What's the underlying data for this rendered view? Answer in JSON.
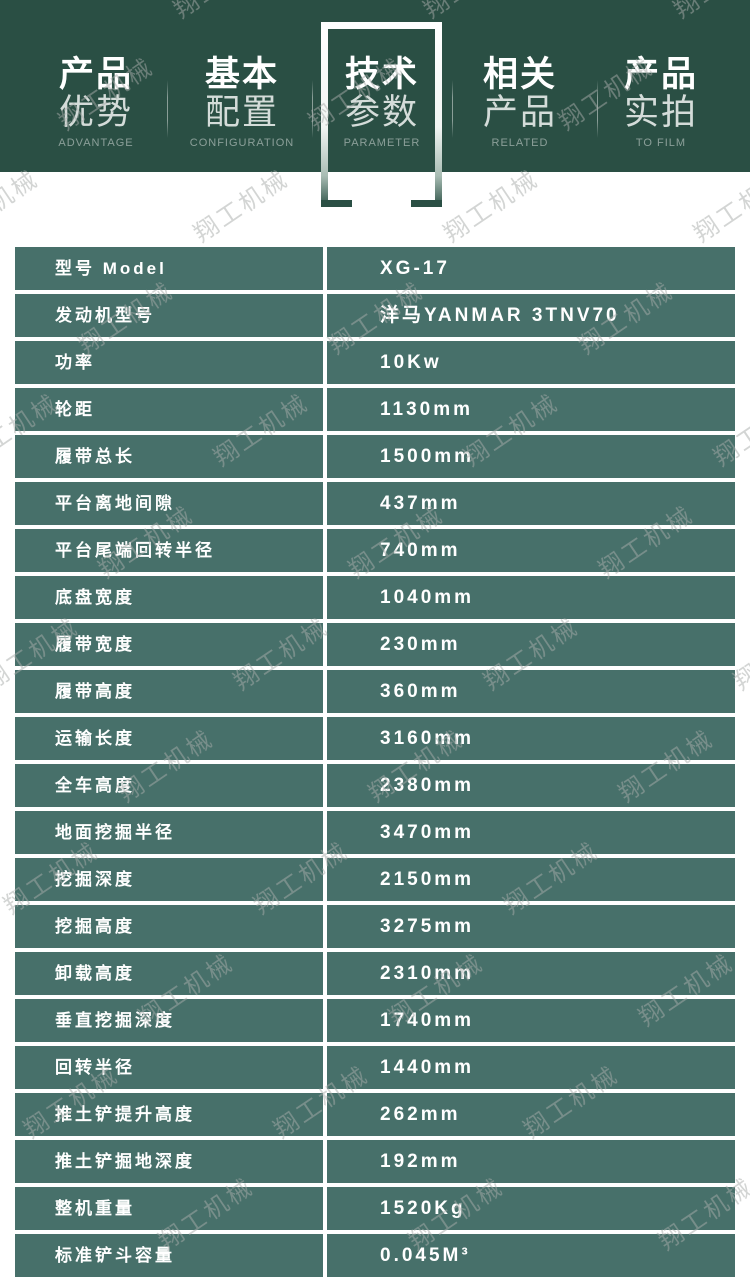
{
  "watermark": {
    "text": "翔工机械"
  },
  "nav": {
    "background_color": "#2a4f44",
    "items": [
      {
        "line1": "产品",
        "line2": "优势",
        "caption": "ADVANTAGE",
        "active": false
      },
      {
        "line1": "基本",
        "line2": "配置",
        "caption": "CONFIGURATION",
        "active": false
      },
      {
        "line1": "技术",
        "line2": "参数",
        "caption": "PARAMETER",
        "active": true
      },
      {
        "line1": "相关",
        "line2": "产品",
        "caption": "RELATED",
        "active": false
      },
      {
        "line1": "产品",
        "line2": "实拍",
        "caption": "TO FILM",
        "active": false
      }
    ]
  },
  "spec_table": {
    "row_color": "#47706a",
    "text_color": "#ffffff",
    "rows": [
      {
        "label": "型号 Model",
        "value": "XG-17"
      },
      {
        "label": "发动机型号",
        "value": "洋马YANMAR 3TNV70"
      },
      {
        "label": "功率",
        "value": "10Kw"
      },
      {
        "label": "轮距",
        "value": "1130mm"
      },
      {
        "label": "履带总长",
        "value": "1500mm"
      },
      {
        "label": "平台离地间隙",
        "value": "437mm"
      },
      {
        "label": "平台尾端回转半径",
        "value": "740mm"
      },
      {
        "label": "底盘宽度",
        "value": "1040mm"
      },
      {
        "label": "履带宽度",
        "value": "230mm"
      },
      {
        "label": "履带高度",
        "value": "360mm"
      },
      {
        "label": "运输长度",
        "value": "3160mm"
      },
      {
        "label": "全车高度",
        "value": "2380mm"
      },
      {
        "label": "地面挖掘半径",
        "value": "3470mm"
      },
      {
        "label": "挖掘深度",
        "value": "2150mm"
      },
      {
        "label": "挖掘高度",
        "value": "3275mm"
      },
      {
        "label": "卸载高度",
        "value": "2310mm"
      },
      {
        "label": "垂直挖掘深度",
        "value": "1740mm"
      },
      {
        "label": "回转半径",
        "value": "1440mm"
      },
      {
        "label": "推土铲提升高度",
        "value": "262mm"
      },
      {
        "label": "推土铲掘地深度",
        "value": "192mm"
      },
      {
        "label": "整机重量",
        "value": "1520Kg"
      },
      {
        "label": "标准铲斗容量",
        "value": "0.045M³"
      }
    ]
  }
}
